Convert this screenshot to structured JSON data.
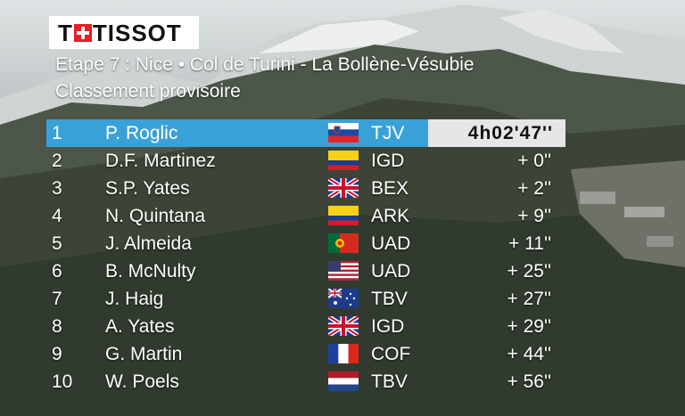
{
  "logo": {
    "text": "TISSOT"
  },
  "header": {
    "stage": "Etape 7 : Nice  •  Col de Turini - La Bollène-Vésubie",
    "subtitle": "Classement provisoire"
  },
  "rows": [
    {
      "rank": "1",
      "name": "P. Roglic",
      "flag": "slovenia-flag-icon",
      "team": "TJV",
      "time": "4h02'47''"
    },
    {
      "rank": "2",
      "name": "D.F. Martinez",
      "flag": "colombia-flag-icon",
      "team": "IGD",
      "time": "+ 0''"
    },
    {
      "rank": "3",
      "name": "S.P. Yates",
      "flag": "uk-flag-icon",
      "team": "BEX",
      "time": "+ 2''"
    },
    {
      "rank": "4",
      "name": "N. Quintana",
      "flag": "colombia-flag-icon",
      "team": "ARK",
      "time": "+ 9''"
    },
    {
      "rank": "5",
      "name": "J. Almeida",
      "flag": "portugal-flag-icon",
      "team": "UAD",
      "time": "+ 11''"
    },
    {
      "rank": "6",
      "name": "B. McNulty",
      "flag": "usa-flag-icon",
      "team": "UAD",
      "time": "+ 25''"
    },
    {
      "rank": "7",
      "name": "J. Haig",
      "flag": "australia-flag-icon",
      "team": "TBV",
      "time": "+ 27''"
    },
    {
      "rank": "8",
      "name": "A. Yates",
      "flag": "uk-flag-icon",
      "team": "IGD",
      "time": "+ 29''"
    },
    {
      "rank": "9",
      "name": "G. Martin",
      "flag": "france-flag-icon",
      "team": "COF",
      "time": "+ 44''"
    },
    {
      "rank": "10",
      "name": "W. Poels",
      "flag": "netherlands-flag-icon",
      "team": "TBV",
      "time": "+ 56''"
    }
  ],
  "colors": {
    "highlight": "#3aa1d8",
    "time_box": "#e6e6e6"
  }
}
